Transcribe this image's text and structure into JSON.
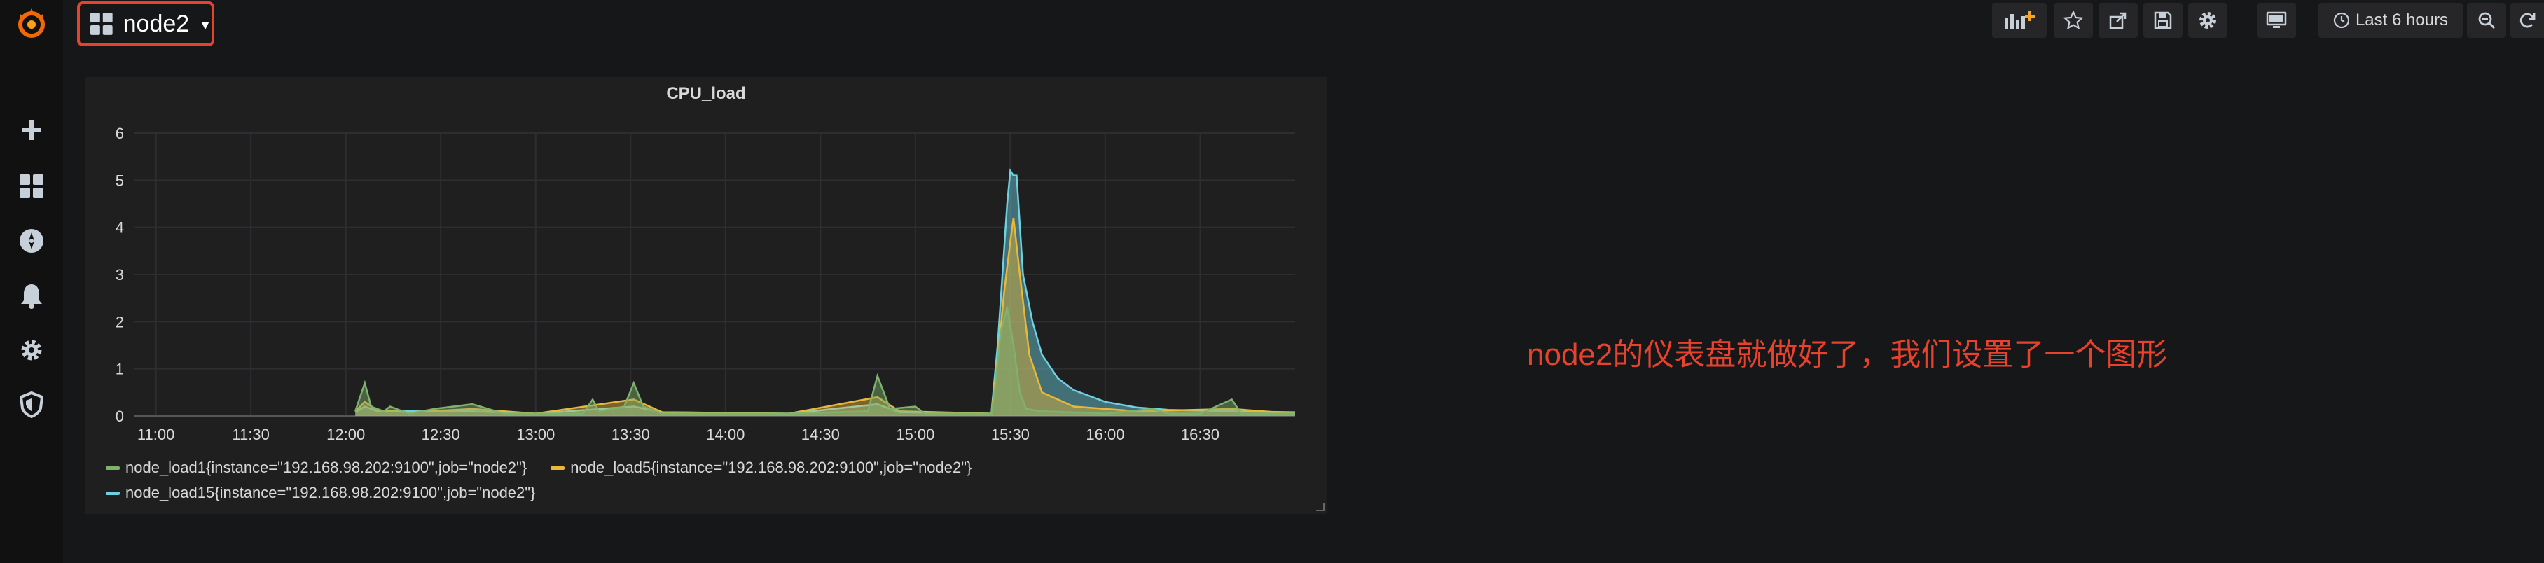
{
  "dashboard": {
    "title": "node2"
  },
  "toolbar": {
    "time_range": "Last 6 hours",
    "buttons": [
      "add-panel-icon",
      "star-icon",
      "share-icon",
      "save-icon",
      "gear-icon",
      "tv-monitor-icon",
      "clock-icon",
      "zoom-out-icon",
      "refresh-icon"
    ]
  },
  "sidebar": {
    "items": [
      "grafana-logo-icon",
      "plus-icon",
      "dashboards-icon",
      "explore-compass-icon",
      "alert-bell-icon",
      "gear-icon",
      "shield-icon"
    ]
  },
  "panel": {
    "title": "CPU_load"
  },
  "annotation": "node2的仪表盘就做好了，我们设置了一个图形",
  "colors": {
    "accent_red": "#e8412c",
    "load1": "#7eb26d",
    "load5": "#eab839",
    "load15": "#6ed0e0"
  },
  "chart_data": {
    "type": "area",
    "title": "CPU_load",
    "ylim": [
      0,
      6
    ],
    "yticks": [
      "0",
      "1",
      "2",
      "3",
      "4",
      "5",
      "6"
    ],
    "xticks": [
      "11:00",
      "11:30",
      "12:00",
      "12:30",
      "13:00",
      "13:30",
      "14:00",
      "14:30",
      "15:00",
      "15:30",
      "16:00",
      "16:30"
    ],
    "x_range": [
      "10:53",
      "17:00"
    ],
    "grid": true,
    "legend_position": "bottom",
    "series": [
      {
        "name": "node_load1{instance=\"192.168.98.202:9100\",job=\"node2\"}",
        "color": "#7eb26d",
        "points": [
          [
            "12:03",
            0.1
          ],
          [
            "12:06",
            0.7
          ],
          [
            "12:08",
            0.2
          ],
          [
            "12:12",
            0.1
          ],
          [
            "12:14",
            0.2
          ],
          [
            "12:20",
            0.05
          ],
          [
            "12:28",
            0.15
          ],
          [
            "12:40",
            0.25
          ],
          [
            "12:50",
            0.05
          ],
          [
            "13:15",
            0.05
          ],
          [
            "13:18",
            0.35
          ],
          [
            "13:20",
            0.1
          ],
          [
            "13:28",
            0.2
          ],
          [
            "13:31",
            0.7
          ],
          [
            "13:34",
            0.2
          ],
          [
            "13:40",
            0.05
          ],
          [
            "14:20",
            0.05
          ],
          [
            "14:45",
            0.1
          ],
          [
            "14:48",
            0.85
          ],
          [
            "14:52",
            0.15
          ],
          [
            "15:00",
            0.2
          ],
          [
            "15:03",
            0.05
          ],
          [
            "15:24",
            0.05
          ],
          [
            "15:25",
            0.5
          ],
          [
            "15:27",
            1.8
          ],
          [
            "15:29",
            2.3
          ],
          [
            "15:31",
            1.5
          ],
          [
            "15:33",
            0.5
          ],
          [
            "15:35",
            0.15
          ],
          [
            "15:40",
            0.1
          ],
          [
            "16:00",
            0.05
          ],
          [
            "16:15",
            0.15
          ],
          [
            "16:20",
            0.05
          ],
          [
            "16:30",
            0.05
          ],
          [
            "16:40",
            0.35
          ],
          [
            "16:43",
            0.05
          ],
          [
            "17:00",
            0.05
          ]
        ]
      },
      {
        "name": "node_load5{instance=\"192.168.98.202:9100\",job=\"node2\"}",
        "color": "#eab839",
        "points": [
          [
            "12:03",
            0.1
          ],
          [
            "12:06",
            0.3
          ],
          [
            "12:10",
            0.12
          ],
          [
            "12:20",
            0.08
          ],
          [
            "12:40",
            0.15
          ],
          [
            "13:00",
            0.05
          ],
          [
            "13:31",
            0.35
          ],
          [
            "13:40",
            0.08
          ],
          [
            "14:20",
            0.05
          ],
          [
            "14:48",
            0.4
          ],
          [
            "14:55",
            0.1
          ],
          [
            "15:24",
            0.05
          ],
          [
            "15:26",
            1.2
          ],
          [
            "15:28",
            2.6
          ],
          [
            "15:30",
            3.7
          ],
          [
            "15:31",
            4.2
          ],
          [
            "15:33",
            3.0
          ],
          [
            "15:36",
            1.3
          ],
          [
            "15:40",
            0.5
          ],
          [
            "15:50",
            0.2
          ],
          [
            "16:10",
            0.1
          ],
          [
            "16:40",
            0.15
          ],
          [
            "17:00",
            0.05
          ]
        ]
      },
      {
        "name": "node_load15{instance=\"192.168.98.202:9100\",job=\"node2\"}",
        "color": "#6ed0e0",
        "points": [
          [
            "12:03",
            0.08
          ],
          [
            "12:06",
            0.2
          ],
          [
            "12:10",
            0.1
          ],
          [
            "12:40",
            0.1
          ],
          [
            "13:00",
            0.05
          ],
          [
            "13:31",
            0.2
          ],
          [
            "13:40",
            0.08
          ],
          [
            "14:20",
            0.05
          ],
          [
            "14:48",
            0.25
          ],
          [
            "14:55",
            0.08
          ],
          [
            "15:24",
            0.05
          ],
          [
            "15:26",
            1.5
          ],
          [
            "15:28",
            3.5
          ],
          [
            "15:29",
            4.5
          ],
          [
            "15:30",
            5.2
          ],
          [
            "15:31",
            5.1
          ],
          [
            "15:32",
            5.1
          ],
          [
            "15:34",
            3.0
          ],
          [
            "15:37",
            2.0
          ],
          [
            "15:40",
            1.3
          ],
          [
            "15:45",
            0.8
          ],
          [
            "15:50",
            0.55
          ],
          [
            "16:00",
            0.3
          ],
          [
            "16:10",
            0.18
          ],
          [
            "16:20",
            0.13
          ],
          [
            "16:40",
            0.1
          ],
          [
            "17:00",
            0.08
          ]
        ]
      }
    ]
  }
}
